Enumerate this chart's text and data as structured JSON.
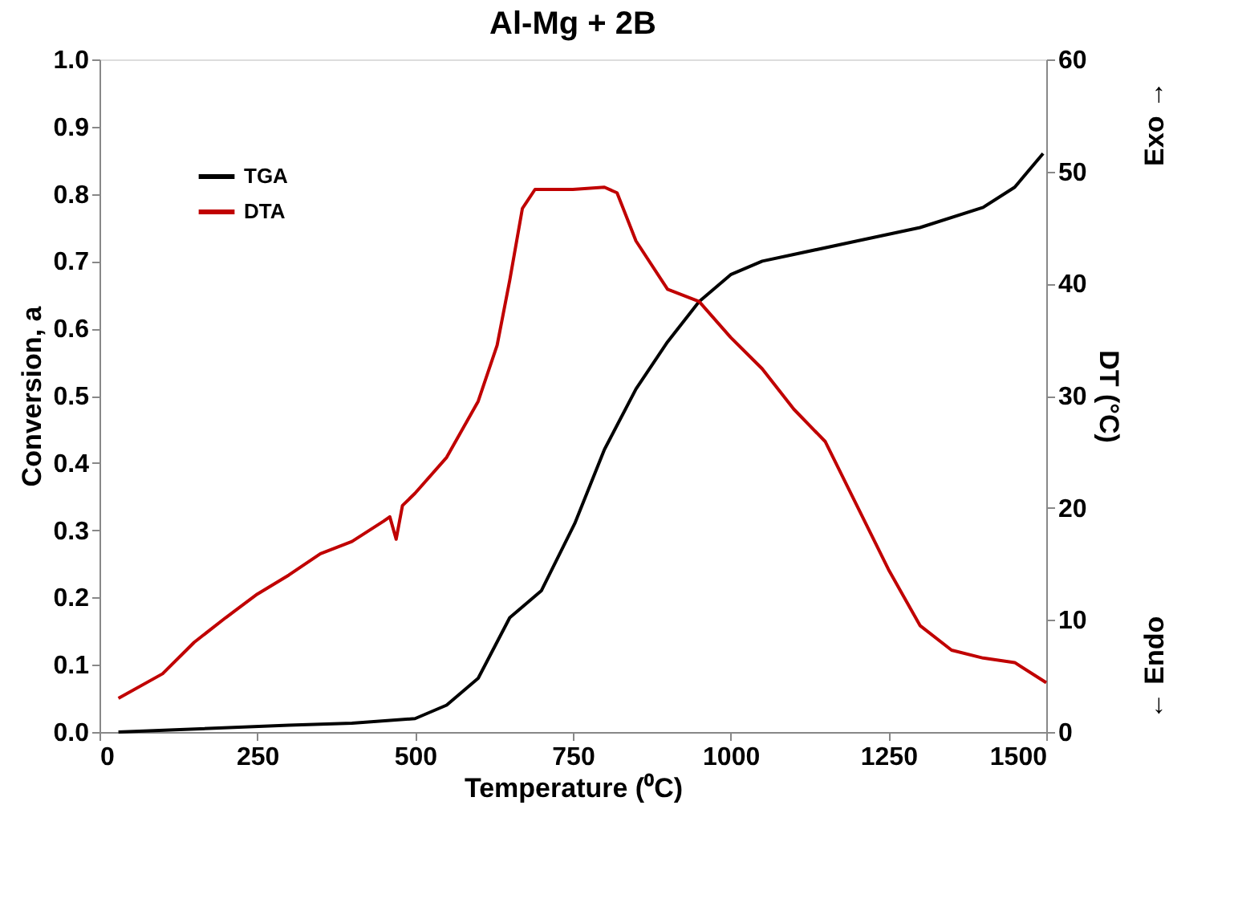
{
  "chart_data": {
    "type": "line",
    "title": "Al-Mg + 2B",
    "xlabel": "Temperature (⁰C)",
    "ylabel": "Conversion, a",
    "y2label": "DT (°C)",
    "annotations": [
      "Exo →",
      "← Endo"
    ],
    "series": [
      {
        "name": "TGA",
        "color": "#000000",
        "x": [
          30,
          300,
          400,
          500,
          550,
          600,
          650,
          700,
          753,
          800,
          850,
          900,
          950,
          1000,
          1050,
          1100,
          1200,
          1300,
          1400,
          1450,
          1495
        ],
        "values": [
          0.0,
          0.01,
          0.013,
          0.02,
          0.04,
          0.08,
          0.17,
          0.21,
          0.31,
          0.42,
          0.51,
          0.58,
          0.64,
          0.68,
          0.7,
          0.71,
          0.73,
          0.75,
          0.78,
          0.81,
          0.86
        ]
      },
      {
        "name": "DTA",
        "color": "#c00000",
        "axis": "y2",
        "x": [
          30,
          100,
          150,
          200,
          250,
          300,
          350,
          400,
          450,
          460,
          470,
          480,
          500,
          550,
          600,
          630,
          650,
          670,
          690,
          750,
          800,
          820,
          850,
          900,
          950,
          1000,
          1050,
          1100,
          1150,
          1200,
          1250,
          1300,
          1350,
          1400,
          1450,
          1500
        ],
        "values": [
          3.0,
          5.2,
          8,
          10.2,
          12.3,
          14,
          15.9,
          17,
          18.8,
          19.2,
          17.2,
          20.2,
          21.3,
          24.5,
          29.5,
          34.5,
          40.3,
          46.7,
          48.4,
          48.4,
          48.6,
          48.1,
          43.8,
          39.5,
          38.4,
          35.2,
          32.4,
          28.8,
          25.9,
          20.2,
          14.5,
          9.5,
          7.3,
          6.6,
          6.2,
          4.4
        ]
      }
    ],
    "xlim": [
      0,
      1500
    ],
    "xticks": [
      0,
      250,
      500,
      750,
      1000,
      1250,
      1500
    ],
    "ylim": [
      0,
      1
    ],
    "yticks": [
      {
        "value": 0,
        "label": "0.0"
      },
      {
        "value": 0.1,
        "label": "0.1"
      },
      {
        "value": 0.2,
        "label": "0.2"
      },
      {
        "value": 0.3,
        "label": "0.3"
      },
      {
        "value": 0.4,
        "label": "0.4"
      },
      {
        "value": 0.5,
        "label": "0.5"
      },
      {
        "value": 0.6,
        "label": "0.6"
      },
      {
        "value": 0.7,
        "label": "0.7"
      },
      {
        "value": 0.8,
        "label": "0.8"
      },
      {
        "value": 0.9,
        "label": "0.9"
      },
      {
        "value": 1,
        "label": "1.0"
      }
    ],
    "y2lim": [
      0,
      60
    ],
    "y2ticks": [
      0,
      10,
      20,
      30,
      40,
      50,
      60
    ],
    "grid": false,
    "legend": "top left",
    "marker": "none",
    "line_style": "solid"
  }
}
